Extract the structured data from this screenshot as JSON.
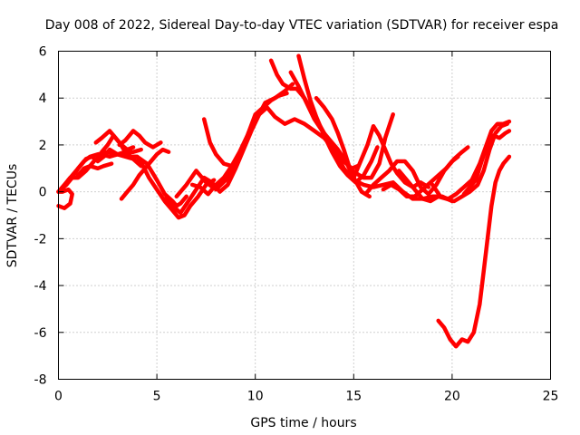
{
  "chart_data": {
    "type": "line",
    "title": "Day 008 of 2022, Sidereal Day-to-day VTEC variation (SDTVAR) for receiver espa",
    "xlabel": "GPS time / hours",
    "ylabel": "SDTVAR / TECUs",
    "xlim": [
      0,
      25
    ],
    "ylim": [
      -8,
      6
    ],
    "xticks": [
      0,
      5,
      10,
      15,
      20,
      25
    ],
    "yticks": [
      -8,
      -6,
      -4,
      -2,
      0,
      2,
      4,
      6
    ],
    "grid": true,
    "marker": "+",
    "color": "#ff0000",
    "series": [
      {
        "points": [
          [
            0.0,
            -0.6
          ],
          [
            0.3,
            -0.7
          ],
          [
            0.6,
            -0.5
          ],
          [
            0.7,
            -0.1
          ],
          [
            0.5,
            0.1
          ],
          [
            0.2,
            0.0
          ],
          [
            0.0,
            0.0
          ]
        ]
      },
      {
        "points": [
          [
            0.0,
            0.0
          ],
          [
            0.4,
            0.3
          ],
          [
            0.7,
            0.6
          ],
          [
            1.0,
            1.0
          ],
          [
            1.3,
            1.3
          ],
          [
            1.6,
            1.5
          ],
          [
            2.0,
            1.6
          ],
          [
            2.5,
            1.7
          ],
          [
            3.0,
            1.6
          ],
          [
            3.5,
            1.5
          ],
          [
            4.0,
            1.5
          ],
          [
            4.5,
            1.2
          ],
          [
            5.0,
            0.5
          ],
          [
            5.4,
            -0.1
          ],
          [
            5.8,
            -0.4
          ],
          [
            6.0,
            -0.6
          ],
          [
            6.2,
            -0.5
          ],
          [
            6.5,
            -0.2
          ]
        ]
      },
      {
        "points": [
          [
            0.0,
            0.0
          ],
          [
            0.3,
            0.3
          ],
          [
            0.6,
            0.6
          ],
          [
            1.0,
            0.6
          ],
          [
            1.4,
            0.9
          ],
          [
            1.8,
            1.3
          ],
          [
            2.2,
            1.6
          ],
          [
            2.6,
            1.5
          ],
          [
            3.0,
            1.6
          ],
          [
            3.4,
            1.7
          ],
          [
            3.8,
            1.7
          ],
          [
            4.2,
            1.8
          ]
        ]
      },
      {
        "points": [
          [
            0.5,
            0.5
          ],
          [
            0.8,
            0.8
          ],
          [
            1.1,
            1.1
          ],
          [
            1.4,
            1.4
          ],
          [
            1.7,
            1.5
          ],
          [
            2.0,
            1.3
          ],
          [
            2.3,
            1.5
          ],
          [
            2.6,
            1.8
          ],
          [
            3.0,
            1.6
          ],
          [
            3.4,
            1.5
          ],
          [
            3.8,
            1.4
          ],
          [
            4.2,
            1.1
          ]
        ]
      },
      {
        "points": [
          [
            1.0,
            0.7
          ],
          [
            1.3,
            1.0
          ],
          [
            1.6,
            1.1
          ],
          [
            2.0,
            1.0
          ],
          [
            2.3,
            1.1
          ],
          [
            2.7,
            1.2
          ]
        ]
      },
      {
        "points": [
          [
            1.9,
            2.1
          ],
          [
            2.2,
            2.3
          ],
          [
            2.6,
            2.6
          ],
          [
            2.9,
            2.3
          ],
          [
            3.2,
            2.0
          ],
          [
            3.5,
            1.8
          ],
          [
            3.8,
            1.9
          ]
        ]
      },
      {
        "points": [
          [
            2.2,
            1.7
          ],
          [
            2.5,
            2.0
          ],
          [
            2.8,
            2.4
          ],
          [
            3.1,
            2.1
          ],
          [
            3.4,
            1.7
          ],
          [
            3.7,
            1.5
          ],
          [
            4.0,
            1.5
          ],
          [
            4.3,
            1.1
          ],
          [
            4.6,
            0.6
          ],
          [
            5.0,
            0.1
          ],
          [
            5.4,
            -0.4
          ],
          [
            5.8,
            -0.8
          ],
          [
            6.1,
            -1.1
          ],
          [
            6.4,
            -1.0
          ],
          [
            6.7,
            -0.6
          ],
          [
            7.1,
            -0.2
          ],
          [
            7.5,
            0.3
          ],
          [
            7.9,
            0.5
          ]
        ]
      },
      {
        "points": [
          [
            3.1,
            2.0
          ],
          [
            3.4,
            2.2
          ],
          [
            3.8,
            2.6
          ],
          [
            4.1,
            2.4
          ],
          [
            4.4,
            2.1
          ],
          [
            4.8,
            1.9
          ],
          [
            5.2,
            2.1
          ]
        ]
      },
      {
        "points": [
          [
            3.2,
            -0.3
          ],
          [
            3.5,
            0.0
          ],
          [
            3.8,
            0.3
          ],
          [
            4.1,
            0.7
          ],
          [
            4.4,
            1.0
          ],
          [
            4.7,
            1.3
          ],
          [
            5.0,
            1.6
          ],
          [
            5.3,
            1.8
          ],
          [
            5.6,
            1.7
          ]
        ]
      },
      {
        "points": [
          [
            5.4,
            -0.3
          ],
          [
            5.8,
            -0.6
          ],
          [
            6.2,
            -0.9
          ],
          [
            6.6,
            -0.4
          ],
          [
            7.0,
            0.1
          ],
          [
            7.4,
            0.6
          ],
          [
            7.8,
            0.4
          ],
          [
            8.2,
            0.0
          ],
          [
            8.6,
            0.3
          ],
          [
            9.0,
            1.0
          ],
          [
            9.4,
            1.8
          ],
          [
            9.8,
            2.6
          ],
          [
            10.2,
            3.3
          ],
          [
            10.6,
            3.6
          ],
          [
            11.0,
            3.2
          ],
          [
            11.5,
            2.9
          ],
          [
            12.0,
            3.1
          ],
          [
            12.5,
            2.9
          ],
          [
            13.0,
            2.6
          ],
          [
            13.5,
            2.3
          ],
          [
            14.0,
            1.8
          ],
          [
            14.5,
            1.0
          ],
          [
            15.0,
            0.5
          ],
          [
            15.5,
            0.3
          ],
          [
            16.0,
            0.2
          ],
          [
            16.5,
            0.3
          ],
          [
            17.0,
            0.4
          ],
          [
            17.5,
            0.0
          ],
          [
            18.0,
            -0.3
          ],
          [
            18.5,
            -0.3
          ],
          [
            19.0,
            -0.2
          ],
          [
            19.5,
            -0.2
          ],
          [
            20.0,
            -0.4
          ]
        ]
      },
      {
        "points": [
          [
            6.0,
            -0.2
          ],
          [
            6.5,
            0.3
          ],
          [
            7.0,
            0.9
          ],
          [
            7.5,
            0.4
          ],
          [
            8.0,
            0.1
          ],
          [
            8.5,
            0.5
          ],
          [
            9.0,
            1.3
          ],
          [
            9.5,
            2.2
          ],
          [
            10.0,
            3.0
          ],
          [
            10.5,
            3.8
          ],
          [
            11.0,
            4.0
          ],
          [
            11.5,
            4.3
          ],
          [
            11.9,
            4.6
          ]
        ]
      },
      {
        "points": [
          [
            6.8,
            0.3
          ],
          [
            7.2,
            0.2
          ],
          [
            7.6,
            -0.1
          ],
          [
            8.0,
            0.3
          ],
          [
            8.4,
            0.6
          ],
          [
            8.8,
            1.1
          ],
          [
            9.2,
            1.7
          ],
          [
            9.6,
            2.4
          ],
          [
            10.0,
            3.3
          ],
          [
            10.4,
            3.6
          ],
          [
            10.8,
            3.9
          ],
          [
            11.2,
            4.1
          ],
          [
            11.6,
            4.2
          ]
        ]
      },
      {
        "points": [
          [
            7.4,
            3.1
          ],
          [
            7.7,
            2.1
          ],
          [
            8.0,
            1.6
          ],
          [
            8.4,
            1.2
          ],
          [
            8.8,
            1.1
          ],
          [
            9.2,
            1.6
          ],
          [
            9.6,
            2.4
          ],
          [
            10.0,
            3.2
          ]
        ]
      },
      {
        "points": [
          [
            10.8,
            5.6
          ],
          [
            11.1,
            5.0
          ],
          [
            11.4,
            4.6
          ],
          [
            11.8,
            4.4
          ],
          [
            12.1,
            4.4
          ],
          [
            12.5,
            4.0
          ],
          [
            12.9,
            3.4
          ],
          [
            13.3,
            2.8
          ],
          [
            13.7,
            2.2
          ],
          [
            14.1,
            1.7
          ],
          [
            14.5,
            1.3
          ],
          [
            14.9,
            1.0
          ],
          [
            15.2,
            1.1
          ]
        ]
      },
      {
        "points": [
          [
            11.8,
            5.1
          ],
          [
            12.2,
            4.5
          ],
          [
            12.6,
            3.8
          ],
          [
            13.0,
            3.1
          ],
          [
            13.4,
            2.6
          ],
          [
            13.8,
            2.2
          ],
          [
            14.2,
            1.8
          ],
          [
            14.6,
            1.3
          ],
          [
            15.0,
            0.6
          ],
          [
            15.4,
            0.0
          ],
          [
            15.8,
            -0.2
          ]
        ]
      },
      {
        "points": [
          [
            12.2,
            5.8
          ],
          [
            12.5,
            4.8
          ],
          [
            12.8,
            3.9
          ],
          [
            13.1,
            3.2
          ],
          [
            13.5,
            2.4
          ],
          [
            13.9,
            1.7
          ],
          [
            14.3,
            1.1
          ],
          [
            14.7,
            0.7
          ],
          [
            15.1,
            0.4
          ],
          [
            15.5,
            0.7
          ],
          [
            15.9,
            1.3
          ],
          [
            16.2,
            1.9
          ]
        ]
      },
      {
        "points": [
          [
            13.1,
            4.0
          ],
          [
            13.5,
            3.6
          ],
          [
            13.9,
            3.1
          ],
          [
            14.2,
            2.5
          ],
          [
            14.5,
            1.8
          ],
          [
            14.8,
            1.0
          ],
          [
            15.1,
            0.8
          ],
          [
            15.5,
            0.6
          ],
          [
            15.9,
            0.6
          ],
          [
            16.3,
            1.2
          ],
          [
            16.6,
            2.3
          ],
          [
            17.0,
            3.3
          ]
        ]
      },
      {
        "points": [
          [
            15.0,
            0.6
          ],
          [
            15.3,
            1.2
          ],
          [
            15.7,
            2.0
          ],
          [
            16.0,
            2.8
          ],
          [
            16.3,
            2.4
          ],
          [
            16.6,
            1.8
          ],
          [
            16.9,
            1.2
          ],
          [
            17.2,
            0.8
          ],
          [
            17.6,
            0.4
          ],
          [
            18.0,
            0.2
          ],
          [
            18.4,
            0.4
          ],
          [
            18.8,
            0.2
          ]
        ]
      },
      {
        "points": [
          [
            15.6,
            -0.1
          ],
          [
            16.0,
            0.3
          ],
          [
            16.4,
            0.6
          ],
          [
            16.8,
            0.9
          ],
          [
            17.2,
            1.3
          ],
          [
            17.6,
            1.3
          ],
          [
            18.0,
            0.9
          ],
          [
            18.4,
            0.2
          ],
          [
            18.8,
            -0.1
          ],
          [
            19.2,
            0.3
          ],
          [
            19.6,
            0.9
          ],
          [
            20.0,
            1.3
          ],
          [
            20.3,
            1.5
          ]
        ]
      },
      {
        "points": [
          [
            16.5,
            0.1
          ],
          [
            16.9,
            0.3
          ],
          [
            17.3,
            0.1
          ],
          [
            17.7,
            -0.2
          ],
          [
            18.1,
            -0.2
          ],
          [
            18.5,
            0.1
          ],
          [
            18.9,
            0.4
          ],
          [
            19.3,
            0.7
          ],
          [
            19.7,
            1.0
          ],
          [
            20.1,
            1.4
          ],
          [
            20.5,
            1.7
          ],
          [
            20.8,
            1.9
          ]
        ]
      },
      {
        "points": [
          [
            17.3,
            0.9
          ],
          [
            17.7,
            0.5
          ],
          [
            18.1,
            0.1
          ],
          [
            18.5,
            -0.3
          ],
          [
            18.9,
            -0.4
          ],
          [
            19.3,
            -0.2
          ],
          [
            19.7,
            -0.3
          ],
          [
            20.1,
            -0.4
          ],
          [
            20.5,
            -0.2
          ],
          [
            20.9,
            0.0
          ],
          [
            21.3,
            0.3
          ],
          [
            21.6,
            0.9
          ],
          [
            21.9,
            1.8
          ],
          [
            22.2,
            2.5
          ],
          [
            22.5,
            2.8
          ],
          [
            22.8,
            2.9
          ]
        ]
      },
      {
        "points": [
          [
            19.0,
            0.3
          ],
          [
            19.4,
            -0.2
          ],
          [
            19.8,
            -0.3
          ],
          [
            20.2,
            -0.1
          ],
          [
            20.6,
            0.2
          ],
          [
            21.0,
            0.5
          ],
          [
            21.4,
            1.2
          ],
          [
            21.7,
            1.9
          ],
          [
            22.0,
            2.6
          ],
          [
            22.3,
            2.9
          ],
          [
            22.6,
            2.9
          ],
          [
            22.9,
            3.0
          ]
        ]
      },
      {
        "points": [
          [
            20.6,
            -0.1
          ],
          [
            20.9,
            0.2
          ],
          [
            21.2,
            0.5
          ],
          [
            21.5,
            1.3
          ],
          [
            21.8,
            2.0
          ],
          [
            22.1,
            2.4
          ],
          [
            22.4,
            2.3
          ],
          [
            22.7,
            2.5
          ],
          [
            22.9,
            2.6
          ]
        ]
      },
      {
        "points": [
          [
            19.3,
            -5.5
          ],
          [
            19.6,
            -5.8
          ],
          [
            19.9,
            -6.3
          ],
          [
            20.2,
            -6.6
          ],
          [
            20.5,
            -6.3
          ],
          [
            20.8,
            -6.4
          ],
          [
            21.1,
            -6.0
          ],
          [
            21.4,
            -4.8
          ],
          [
            21.6,
            -3.4
          ],
          [
            21.8,
            -2.0
          ],
          [
            22.0,
            -0.6
          ],
          [
            22.2,
            0.4
          ],
          [
            22.4,
            0.9
          ],
          [
            22.6,
            1.2
          ],
          [
            22.9,
            1.5
          ]
        ]
      }
    ]
  }
}
